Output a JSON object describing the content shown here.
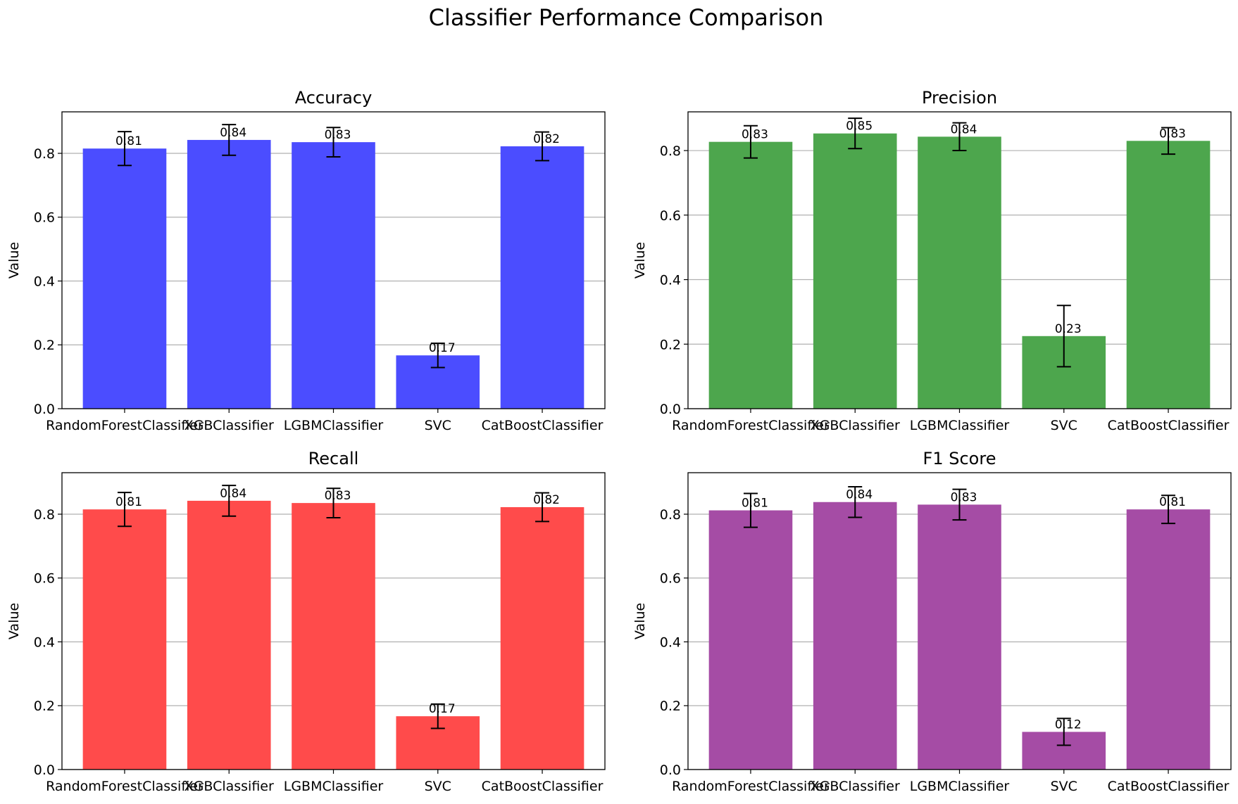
{
  "figure": {
    "title": "Classifier Performance Comparison"
  },
  "chart_data": [
    {
      "type": "bar",
      "title": "Accuracy",
      "xlabel": "",
      "ylabel": "Value",
      "categories": [
        "RandomForestClassifier",
        "XGBClassifier",
        "LGBMClassifier",
        "SVC",
        "CatBoostClassifier"
      ],
      "values": [
        0.815,
        0.842,
        0.835,
        0.167,
        0.822
      ],
      "value_labels": [
        "0.81",
        "0.84",
        "0.83",
        "0.17",
        "0.82"
      ],
      "error": [
        0.053,
        0.048,
        0.046,
        0.038,
        0.045
      ],
      "ylim": [
        0,
        0.93
      ],
      "yticks": [
        "0.0",
        "0.2",
        "0.4",
        "0.6",
        "0.8"
      ],
      "grid": "y",
      "color": "#4b4dff"
    },
    {
      "type": "bar",
      "title": "Precision",
      "xlabel": "",
      "ylabel": "Value",
      "categories": [
        "RandomForestClassifier",
        "XGBClassifier",
        "LGBMClassifier",
        "SVC",
        "CatBoostClassifier"
      ],
      "values": [
        0.827,
        0.853,
        0.843,
        0.225,
        0.83
      ],
      "value_labels": [
        "0.83",
        "0.85",
        "0.84",
        "0.23",
        "0.83"
      ],
      "error": [
        0.05,
        0.047,
        0.043,
        0.095,
        0.041
      ],
      "ylim": [
        0,
        0.92
      ],
      "yticks": [
        "0.0",
        "0.2",
        "0.4",
        "0.6",
        "0.8"
      ],
      "grid": "y",
      "color": "#4da64d"
    },
    {
      "type": "bar",
      "title": "Recall",
      "xlabel": "",
      "ylabel": "Value",
      "categories": [
        "RandomForestClassifier",
        "XGBClassifier",
        "LGBMClassifier",
        "SVC",
        "CatBoostClassifier"
      ],
      "values": [
        0.815,
        0.842,
        0.835,
        0.167,
        0.822
      ],
      "value_labels": [
        "0.81",
        "0.84",
        "0.83",
        "0.17",
        "0.82"
      ],
      "error": [
        0.053,
        0.048,
        0.046,
        0.038,
        0.045
      ],
      "ylim": [
        0,
        0.93
      ],
      "yticks": [
        "0.0",
        "0.2",
        "0.4",
        "0.6",
        "0.8"
      ],
      "grid": "y",
      "color": "#ff4b4b"
    },
    {
      "type": "bar",
      "title": "F1 Score",
      "xlabel": "",
      "ylabel": "Value",
      "categories": [
        "RandomForestClassifier",
        "XGBClassifier",
        "LGBMClassifier",
        "SVC",
        "CatBoostClassifier"
      ],
      "values": [
        0.812,
        0.838,
        0.83,
        0.118,
        0.815
      ],
      "value_labels": [
        "0.81",
        "0.84",
        "0.83",
        "0.12",
        "0.81"
      ],
      "error": [
        0.053,
        0.048,
        0.048,
        0.042,
        0.044
      ],
      "ylim": [
        0,
        0.93
      ],
      "yticks": [
        "0.0",
        "0.2",
        "0.4",
        "0.6",
        "0.8"
      ],
      "grid": "y",
      "color": "#a54ca5"
    }
  ]
}
